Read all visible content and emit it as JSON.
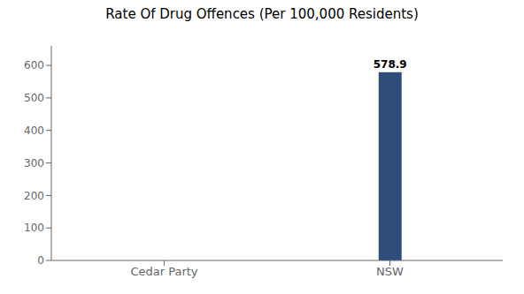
{
  "chart_data": {
    "type": "bar",
    "title": "Rate Of Drug Offences (Per 100,000 Residents)",
    "categories": [
      "Cedar Party",
      "NSW"
    ],
    "values": [
      0,
      578.9
    ],
    "color": "#2e4d7b",
    "ylim": [
      0,
      660
    ],
    "yticks": [
      0,
      100,
      200,
      300,
      400,
      500,
      600
    ],
    "grid": false,
    "data_labels": true
  }
}
